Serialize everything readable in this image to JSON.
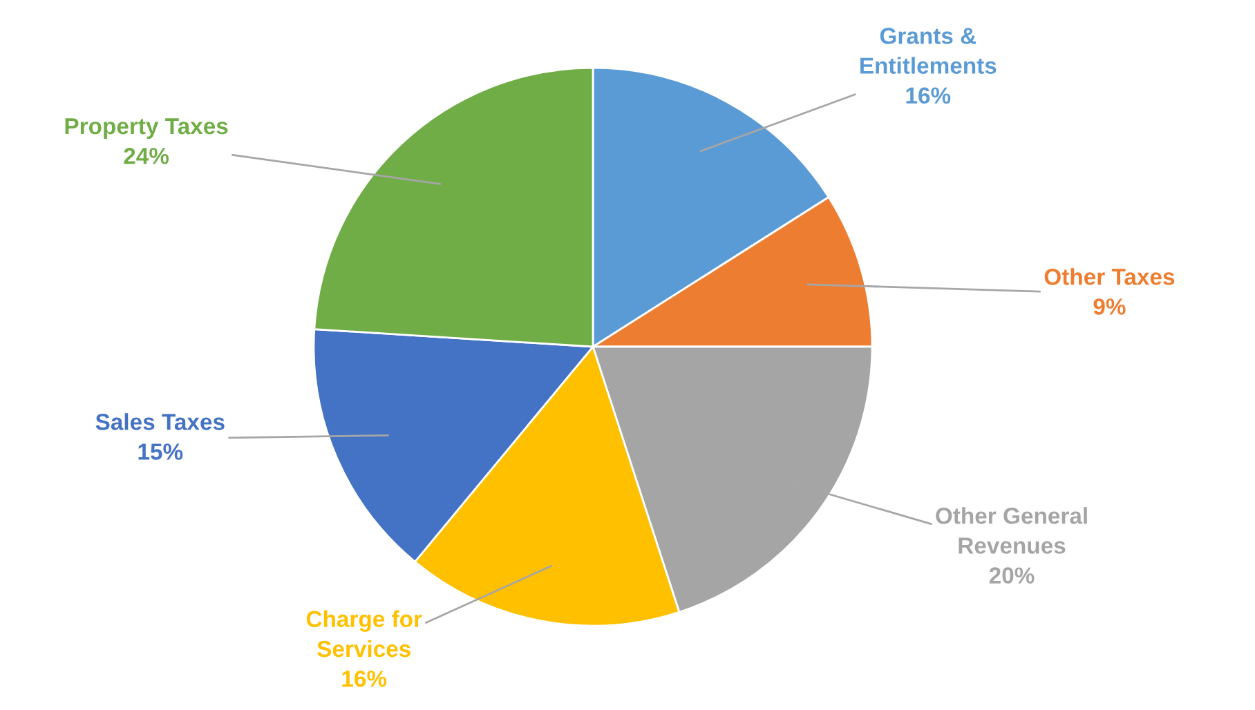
{
  "chart_data": {
    "type": "pie",
    "categories": [
      "Grants &\nEntitlements",
      "Other Taxes",
      "Other General\nRevenues",
      "Charge for\nServices",
      "Sales Taxes",
      "Property Taxes"
    ],
    "values": [
      16,
      9,
      20,
      16,
      15,
      24
    ],
    "colors": [
      "#5b9bd5",
      "#ed7d31",
      "#a5a5a5",
      "#ffc000",
      "#4472c4",
      "#70ad47"
    ],
    "value_labels": [
      "16%",
      "9%",
      "20%",
      "16%",
      "15%",
      "24%"
    ],
    "legend": false
  }
}
